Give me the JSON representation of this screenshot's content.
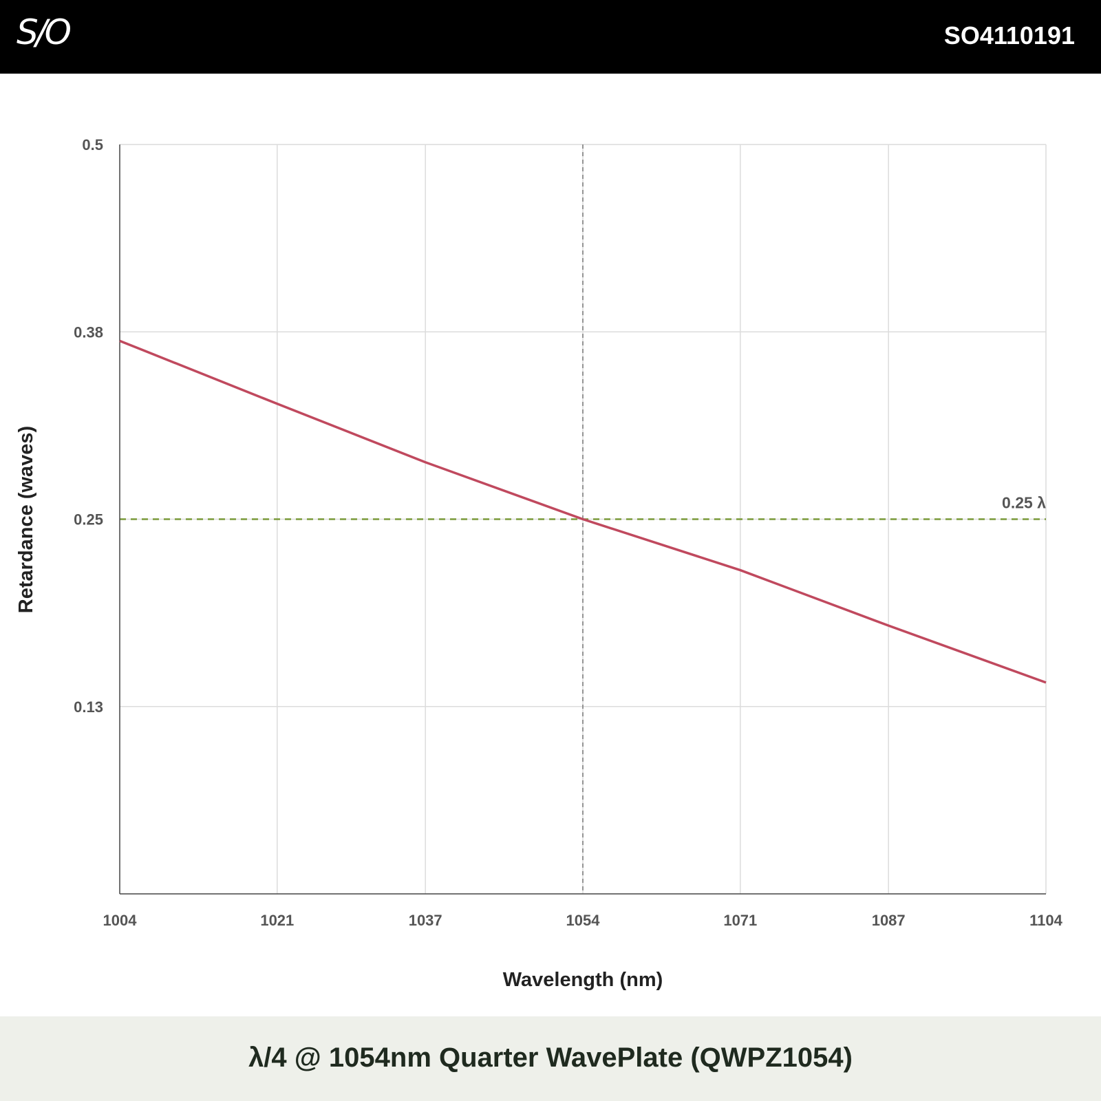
{
  "header": {
    "logo_text": "S/O",
    "product_code": "SO4110191"
  },
  "footer": {
    "title": "λ/4 @ 1054nm Quarter WavePlate (QWPZ1054)"
  },
  "chart_data": {
    "type": "line",
    "title": "λ/4 @ 1054nm Quarter WavePlate (QWPZ1054)",
    "xlabel": "Wavelength (nm)",
    "ylabel": "Retardance (waves)",
    "xlim": [
      1004,
      1104
    ],
    "ylim": [
      0,
      0.5
    ],
    "x_ticks": [
      "1004",
      "1021",
      "1037",
      "1054",
      "1071",
      "1087",
      "1104"
    ],
    "y_ticks": [
      {
        "label": "0.5",
        "value": 0.5
      },
      {
        "label": "0.38",
        "value": 0.375
      },
      {
        "label": "0.25",
        "value": 0.25
      },
      {
        "label": "0.13",
        "value": 0.125
      }
    ],
    "grid": true,
    "series": [
      {
        "color": "#c0495e",
        "x": [
          1004,
          1021,
          1037,
          1054,
          1071,
          1087,
          1104
        ],
        "y": [
          0.369,
          0.327,
          0.288,
          0.25,
          0.216,
          0.179,
          0.141
        ]
      }
    ],
    "reference_lines": [
      {
        "orientation": "horizontal",
        "value": 0.25,
        "label": "0.25 λ",
        "color": "#7a9a3a",
        "style": "dashed"
      },
      {
        "orientation": "vertical",
        "value": 1054,
        "label": "",
        "color": "#777777",
        "style": "dashed"
      }
    ]
  }
}
